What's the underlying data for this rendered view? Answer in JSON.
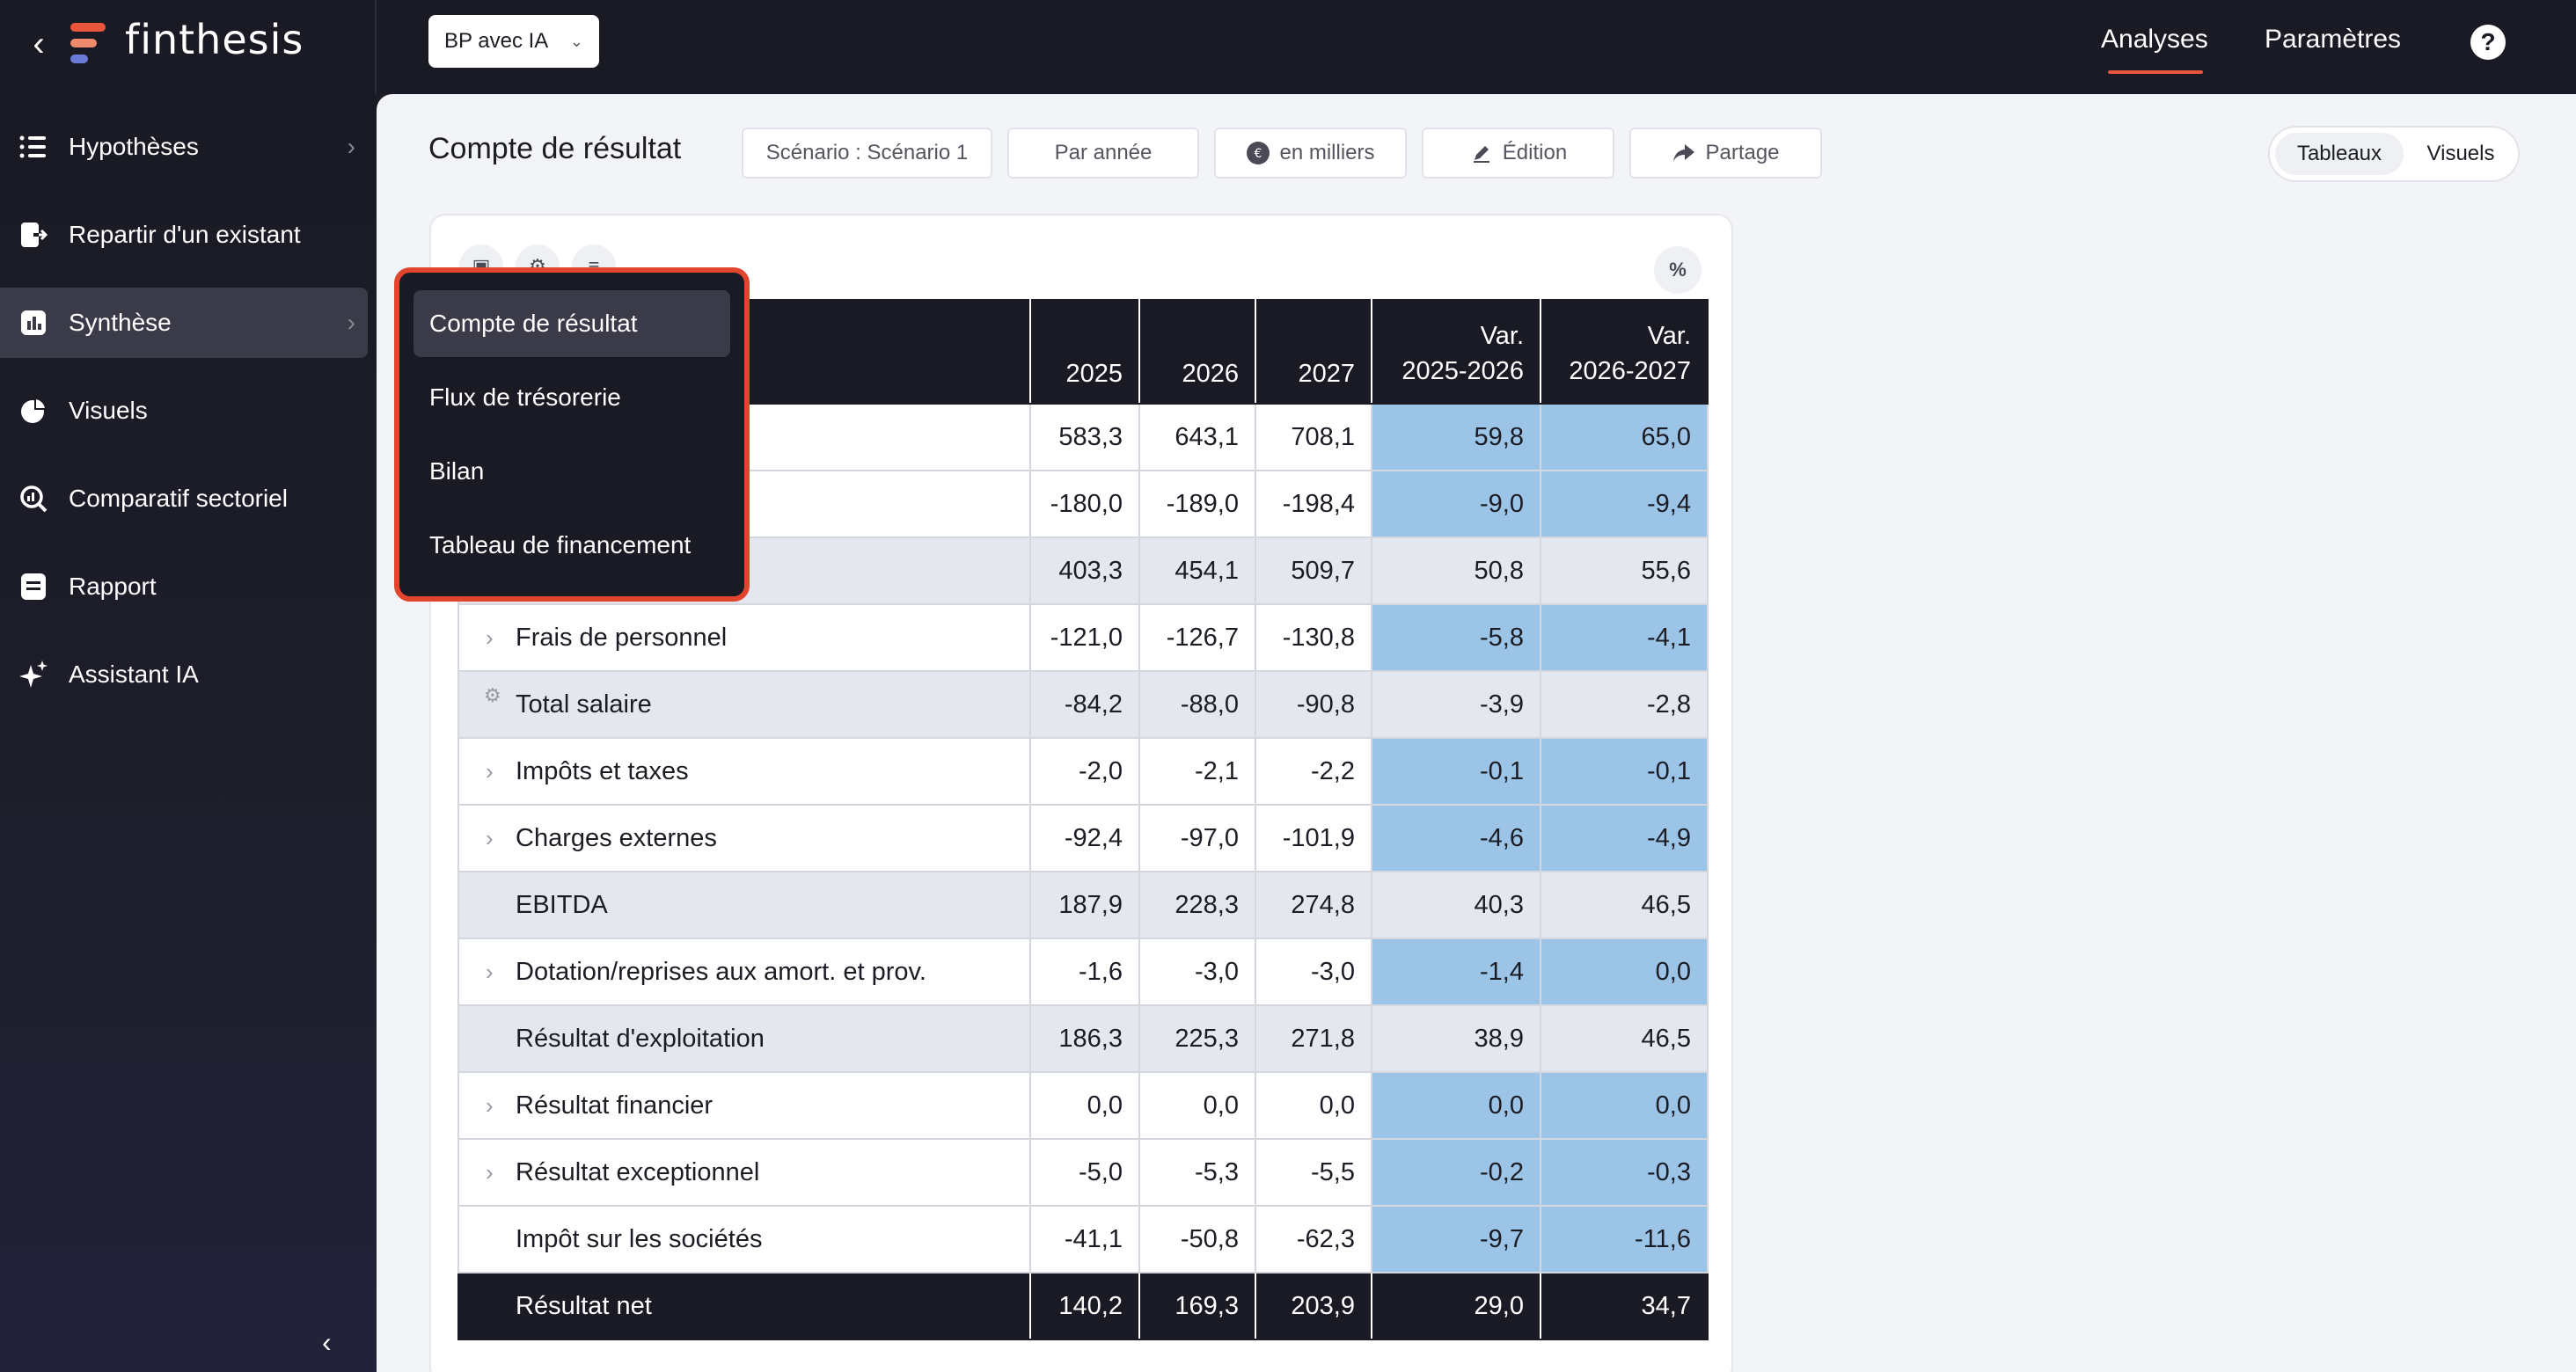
{
  "app": {
    "brand": "finthesis",
    "project": "BP avec IA"
  },
  "topnav": {
    "analyses": "Analyses",
    "parametres": "Paramètres",
    "help": "?"
  },
  "sidebar": {
    "items": [
      {
        "label": "Hypothèses",
        "icon": "list-icon"
      },
      {
        "label": "Repartir d'un existant",
        "icon": "import-icon"
      },
      {
        "label": "Synthèse",
        "icon": "chart-icon"
      },
      {
        "label": "Visuels",
        "icon": "pie-icon"
      },
      {
        "label": "Comparatif sectoriel",
        "icon": "search-analytics-icon"
      },
      {
        "label": "Rapport",
        "icon": "document-icon"
      },
      {
        "label": "Assistant IA",
        "icon": "sparkle-icon"
      }
    ],
    "collapse": "‹"
  },
  "toolbar": {
    "title": "Compte de résultat",
    "scenario": "Scénario : Scénario 1",
    "period": "Par année",
    "unit": "en milliers",
    "edit": "Édition",
    "share": "Partage",
    "view_tables": "Tableaux",
    "view_visuals": "Visuels",
    "percent": "%"
  },
  "menu": {
    "items": [
      "Compte de résultat",
      "Flux de trésorerie",
      "Bilan",
      "Tableau de financement"
    ]
  },
  "table": {
    "headers": [
      "2025",
      "2026",
      "2027",
      "Var.",
      "2025-2026",
      "Var.",
      "2026-2027"
    ],
    "rows": [
      {
        "label": "",
        "v": [
          "583,3",
          "643,1",
          "708,1",
          "59,8",
          "65,0"
        ]
      },
      {
        "label": "",
        "v": [
          "-180,0",
          "-189,0",
          "-198,4",
          "-9,0",
          "-9,4"
        ]
      },
      {
        "label": "",
        "v": [
          "403,3",
          "454,1",
          "509,7",
          "50,8",
          "55,6"
        ]
      },
      {
        "label": "Frais de personnel",
        "v": [
          "-121,0",
          "-126,7",
          "-130,8",
          "-5,8",
          "-4,1"
        ]
      },
      {
        "label": "Total salaire",
        "v": [
          "-84,2",
          "-88,0",
          "-90,8",
          "-3,9",
          "-2,8"
        ]
      },
      {
        "label": "Impôts et taxes",
        "v": [
          "-2,0",
          "-2,1",
          "-2,2",
          "-0,1",
          "-0,1"
        ]
      },
      {
        "label": "Charges externes",
        "v": [
          "-92,4",
          "-97,0",
          "-101,9",
          "-4,6",
          "-4,9"
        ]
      },
      {
        "label": "EBITDA",
        "v": [
          "187,9",
          "228,3",
          "274,8",
          "40,3",
          "46,5"
        ]
      },
      {
        "label": "Dotation/reprises aux amort. et prov.",
        "v": [
          "-1,6",
          "-3,0",
          "-3,0",
          "-1,4",
          "0,0"
        ]
      },
      {
        "label": "Résultat d'exploitation",
        "v": [
          "186,3",
          "225,3",
          "271,8",
          "38,9",
          "46,5"
        ]
      },
      {
        "label": "Résultat financier",
        "v": [
          "0,0",
          "0,0",
          "0,0",
          "0,0",
          "0,0"
        ]
      },
      {
        "label": "Résultat exceptionnel",
        "v": [
          "-5,0",
          "-5,3",
          "-5,5",
          "-0,2",
          "-0,3"
        ]
      },
      {
        "label": "Impôt sur les sociétés",
        "v": [
          "-41,1",
          "-50,8",
          "-62,3",
          "-9,7",
          "-11,6"
        ]
      },
      {
        "label": "Résultat net",
        "v": [
          "140,2",
          "169,3",
          "203,9",
          "29,0",
          "34,7"
        ]
      }
    ]
  },
  "colors": {
    "accent": "#e8553a",
    "variance_cell": "#9cc4e6",
    "dark": "#1a1a24",
    "menu_border": "#e2452e"
  }
}
